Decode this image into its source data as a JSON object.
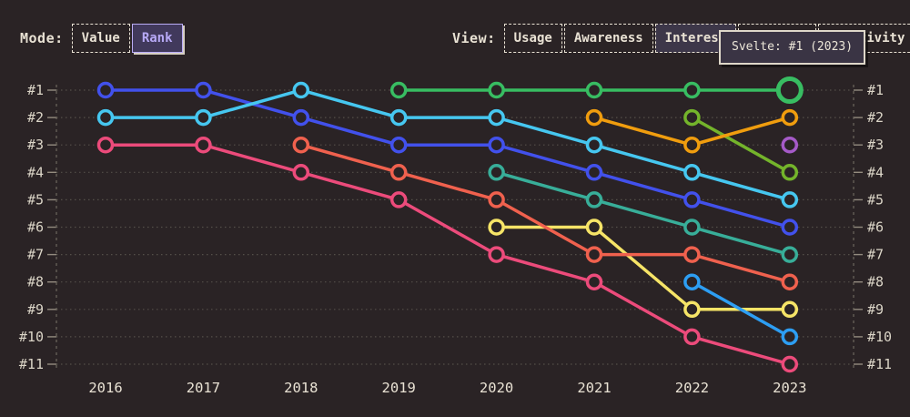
{
  "header": {
    "mode_label": "Mode:",
    "mode_options": [
      {
        "label": "Value",
        "selected": false
      },
      {
        "label": "Rank",
        "selected": true
      }
    ],
    "view_label": "View:",
    "view_options": [
      {
        "label": "Usage",
        "selected": false
      },
      {
        "label": "Awareness",
        "selected": false
      },
      {
        "label": "Interest",
        "selected": true
      },
      {
        "label": "",
        "selected": false
      },
      {
        "label": "Positivity",
        "selected": false
      }
    ]
  },
  "tooltip": {
    "text": "Svelte: #1 (2023)"
  },
  "colors": {
    "background": "#2a2325",
    "text_cream": "#e9e2d4",
    "axis_text": "#dbd5c7",
    "gridline": "#544f49",
    "axis_dash": "#6e675e",
    "tick": "#938b7f",
    "mode_selected_accent": "#b7a9f6",
    "tooltip_border": "#ded7c9"
  },
  "chart_data": {
    "type": "line",
    "subtype": "bump-rank-chart",
    "x": [
      "2016",
      "2017",
      "2018",
      "2019",
      "2020",
      "2021",
      "2022",
      "2023"
    ],
    "rank_labels": [
      "#1",
      "#2",
      "#3",
      "#4",
      "#5",
      "#6",
      "#7",
      "#8",
      "#9",
      "#10",
      "#11"
    ],
    "ylim": [
      1,
      11
    ],
    "grid": "dotted-horizontal",
    "legend_position": "none",
    "highlight": {
      "series": "svelte",
      "x": "2023",
      "rank": 1
    },
    "series": [
      {
        "name": "series-blue",
        "color": "#4251ec",
        "ranks": [
          1,
          1,
          2,
          3,
          3,
          4,
          5,
          6
        ]
      },
      {
        "name": "series-cyan",
        "color": "#46c7f0",
        "ranks": [
          2,
          2,
          1,
          2,
          2,
          3,
          4,
          5
        ]
      },
      {
        "name": "series-pink",
        "color": "#ec4b7b",
        "ranks": [
          3,
          3,
          4,
          5,
          7,
          8,
          10,
          11
        ]
      },
      {
        "name": "series-teal",
        "color": "#38ae99",
        "ranks": [
          null,
          null,
          null,
          null,
          4,
          5,
          6,
          7
        ]
      },
      {
        "name": "series-yellow",
        "color": "#f6e467",
        "ranks": [
          null,
          null,
          null,
          null,
          6,
          6,
          9,
          9
        ]
      },
      {
        "name": "series-coral",
        "color": "#f0614e",
        "ranks": [
          null,
          null,
          3,
          4,
          5,
          7,
          7,
          8
        ]
      },
      {
        "name": "series-lime",
        "color": "#74b42b",
        "ranks": [
          null,
          null,
          null,
          null,
          null,
          null,
          2,
          4
        ]
      },
      {
        "name": "series-orange",
        "color": "#f09d0e",
        "ranks": [
          null,
          null,
          null,
          null,
          null,
          2,
          3,
          2
        ]
      },
      {
        "name": "svelte",
        "color": "#38bd62",
        "ranks": [
          null,
          null,
          null,
          1,
          1,
          1,
          1,
          1
        ]
      },
      {
        "name": "series-sky",
        "color": "#2d9ef3",
        "ranks": [
          null,
          null,
          null,
          null,
          null,
          null,
          8,
          10
        ]
      },
      {
        "name": "series-purple",
        "color": "#a55ac8",
        "ranks": [
          null,
          null,
          null,
          null,
          null,
          null,
          null,
          3
        ]
      }
    ]
  }
}
